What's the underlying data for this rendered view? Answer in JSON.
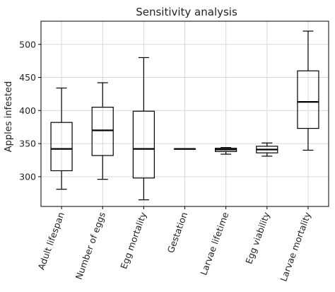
{
  "chart_data": {
    "type": "box",
    "title": "Sensitivity analysis",
    "xlabel": "",
    "ylabel": "Apples infested",
    "ylim": [
      255,
      535
    ],
    "yticks": [
      300,
      350,
      400,
      450,
      500
    ],
    "grid": true,
    "categories": [
      "Adult lifespan",
      "Number of eggs",
      "Egg mortality",
      "Gestation",
      "Larvae lifetime",
      "Egg viability",
      "Larvae mortality"
    ],
    "boxes": [
      {
        "whisker_low": 281,
        "q1": 309,
        "median": 342,
        "q3": 382,
        "whisker_high": 434
      },
      {
        "whisker_low": 296,
        "q1": 332,
        "median": 370,
        "q3": 405,
        "whisker_high": 442
      },
      {
        "whisker_low": 265,
        "q1": 298,
        "median": 342,
        "q3": 399,
        "whisker_high": 480
      },
      {
        "whisker_low": 342,
        "q1": 342,
        "median": 342,
        "q3": 342,
        "whisker_high": 342
      },
      {
        "whisker_low": 334,
        "q1": 338,
        "median": 341,
        "q3": 343,
        "whisker_high": 344
      },
      {
        "whisker_low": 331,
        "q1": 336,
        "median": 341,
        "q3": 346,
        "whisker_high": 351
      },
      {
        "whisker_low": 340,
        "q1": 373,
        "median": 413,
        "q3": 460,
        "whisker_high": 520
      }
    ]
  }
}
